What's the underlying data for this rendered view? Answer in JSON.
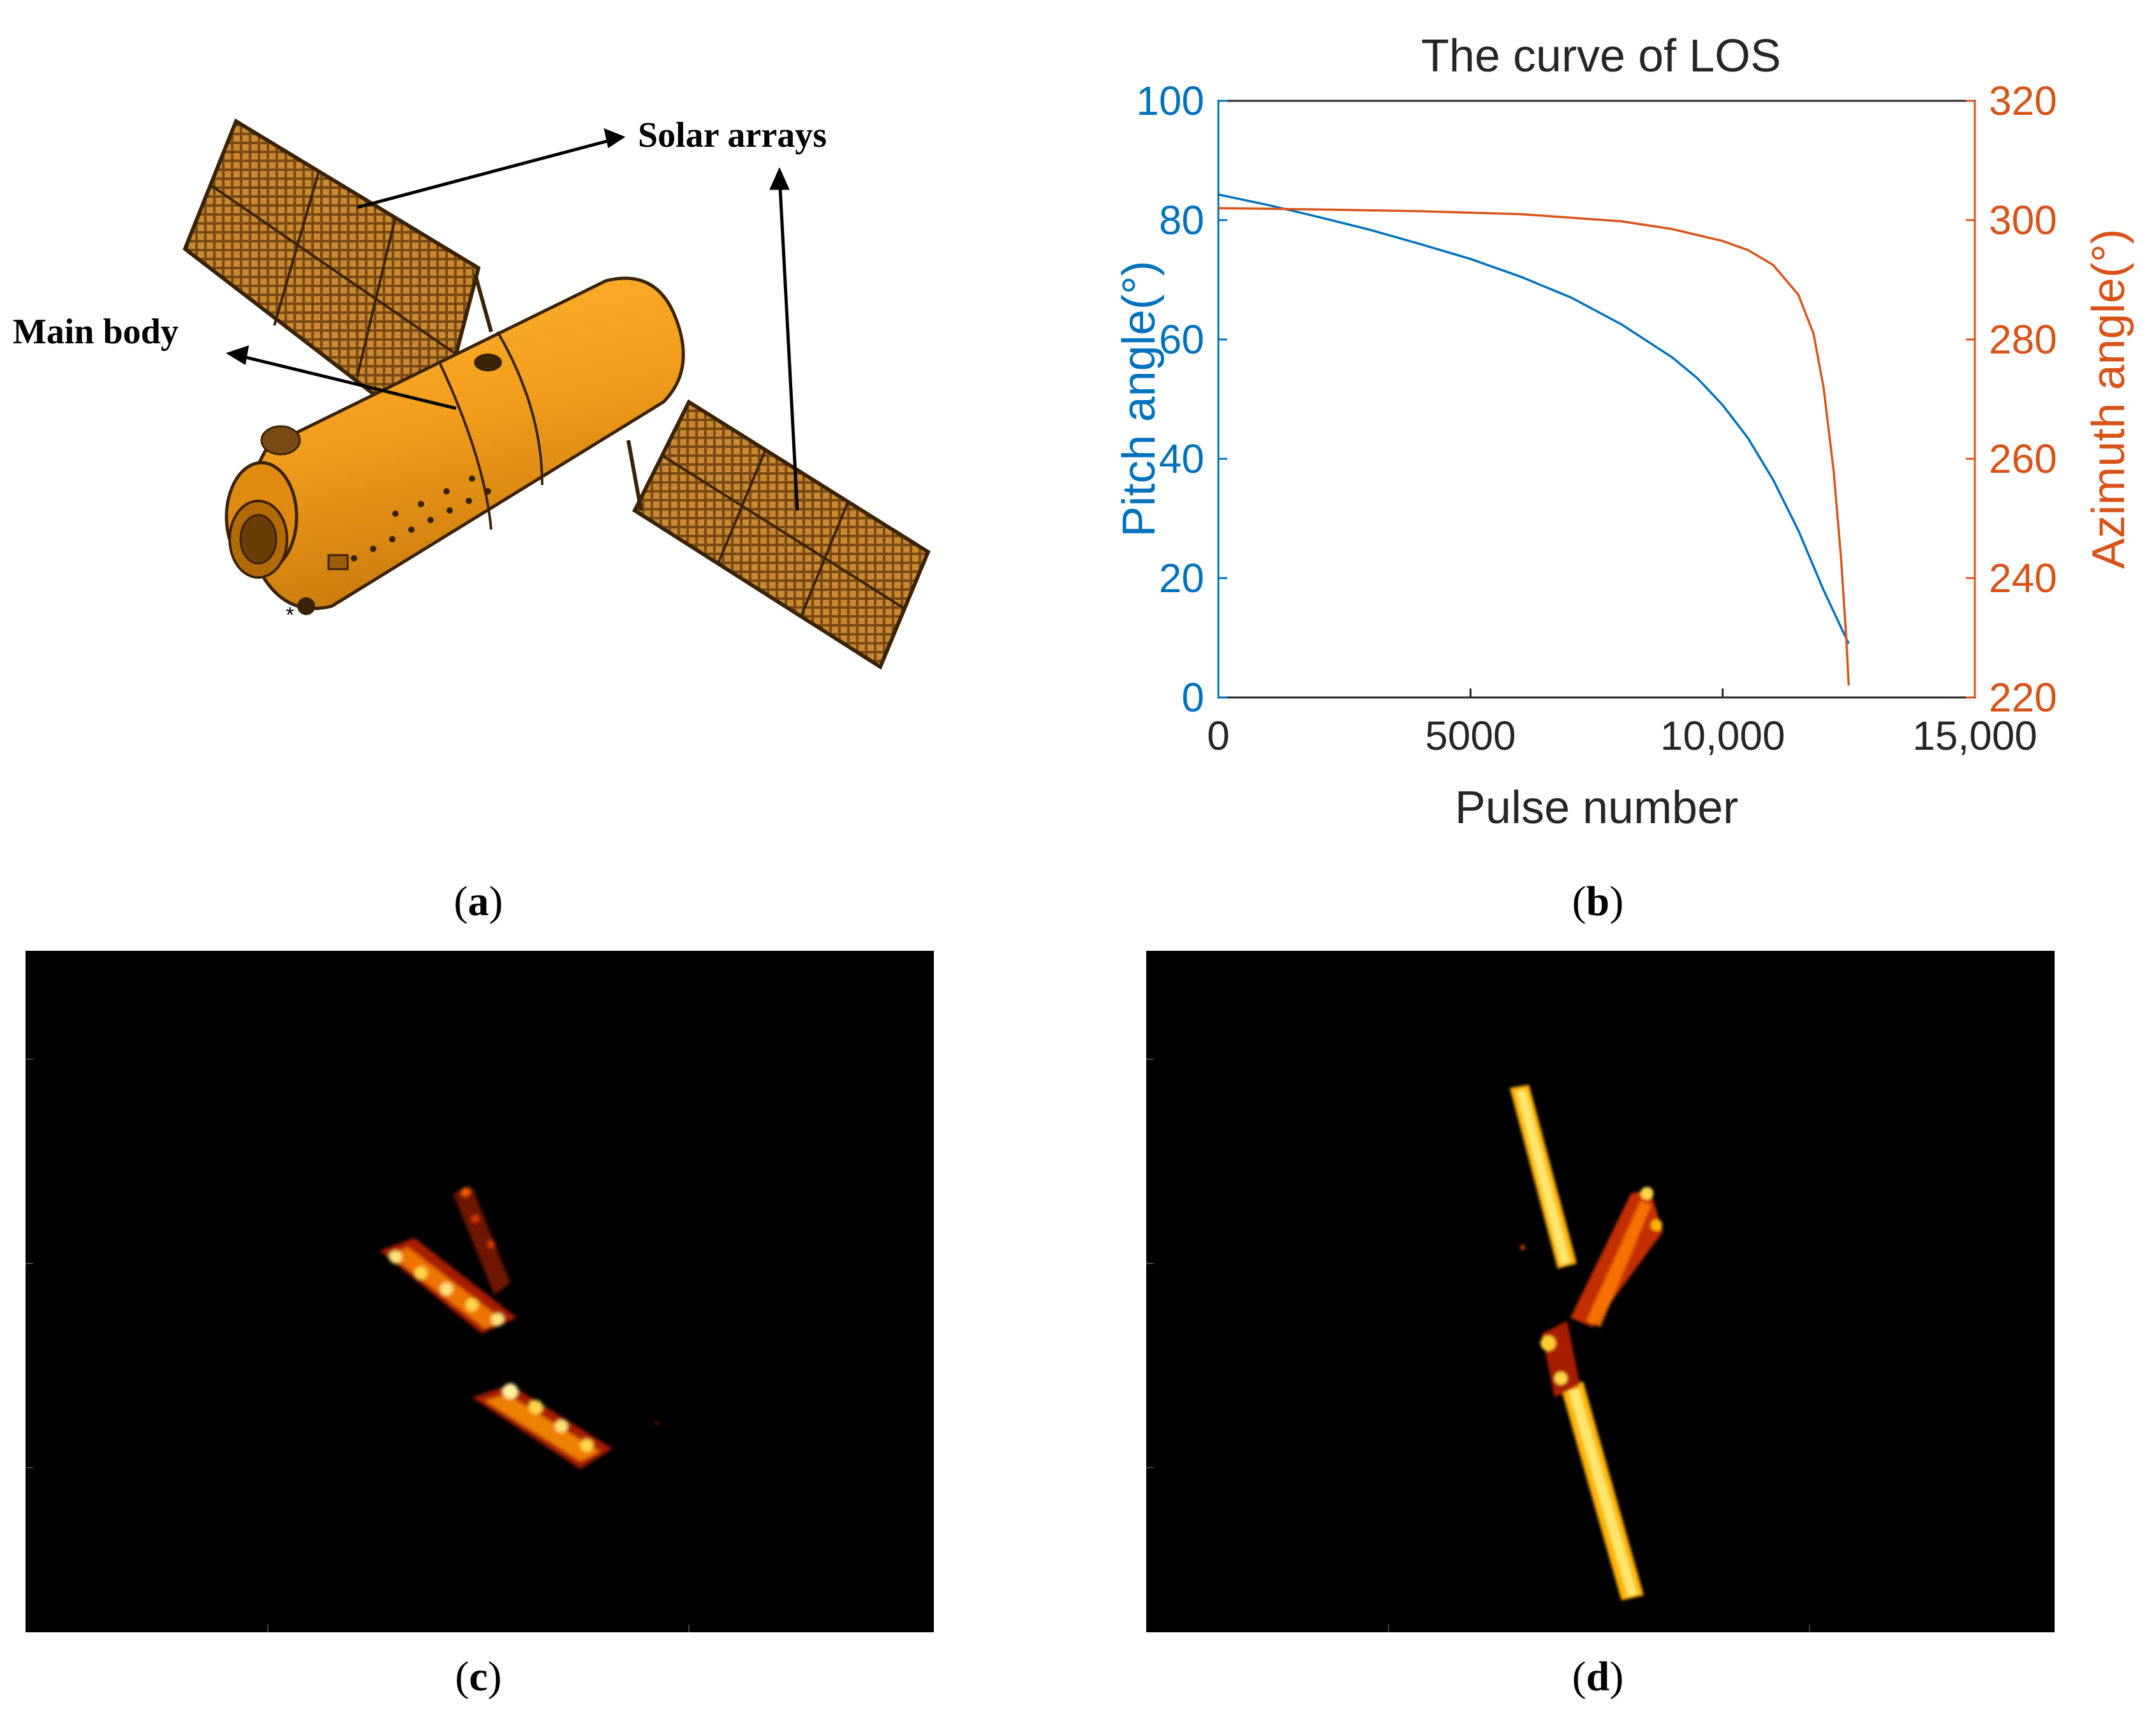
{
  "figure": {
    "panel_a": {
      "labels": {
        "solar": "Solar arrays",
        "main": "Main body"
      },
      "caption": "a"
    },
    "panel_b": {
      "caption": "b"
    },
    "panel_c": {
      "caption": "c"
    },
    "panel_d": {
      "caption": "d"
    }
  },
  "chart_data": {
    "type": "line",
    "title": "The curve of LOS",
    "xlabel": "Pulse number",
    "ylabel_left": "Pitch angle(°)",
    "ylabel_right": "Azimuth angle(°)",
    "xlim": [
      0,
      15000
    ],
    "ylim_left": [
      0,
      100
    ],
    "ylim_right": [
      220,
      320
    ],
    "x_ticks": [
      "0",
      "5000",
      "10,000",
      "15,000"
    ],
    "y_ticks_left": [
      "0",
      "20",
      "40",
      "60",
      "80",
      "100"
    ],
    "y_ticks_right": [
      "220",
      "240",
      "260",
      "280",
      "300",
      "320"
    ],
    "grid": false,
    "colors": {
      "pitch": "#0072BD",
      "azimuth": "#D95319"
    },
    "series": [
      {
        "axis": "left",
        "x": [
          0,
          1000,
          2000,
          3000,
          4000,
          5000,
          6000,
          7000,
          8000,
          9000,
          9500,
          10000,
          10500,
          11000,
          11500,
          12000,
          12500
        ],
        "values": [
          84.3,
          82.5,
          80.5,
          78.4,
          76.0,
          73.5,
          70.5,
          67.0,
          62.5,
          57.0,
          53.5,
          49.0,
          43.5,
          36.5,
          28.0,
          18.0,
          9.0
        ]
      },
      {
        "axis": "right",
        "x": [
          0,
          2000,
          4000,
          6000,
          8000,
          9000,
          10000,
          10500,
          11000,
          11500,
          11800,
          12000,
          12200,
          12350,
          12450,
          12500
        ],
        "values": [
          302,
          301.8,
          301.5,
          301.0,
          299.8,
          298.5,
          296.5,
          295.0,
          292.5,
          287.5,
          281.0,
          272.0,
          258.0,
          243.0,
          230.0,
          222.0
        ]
      }
    ]
  }
}
